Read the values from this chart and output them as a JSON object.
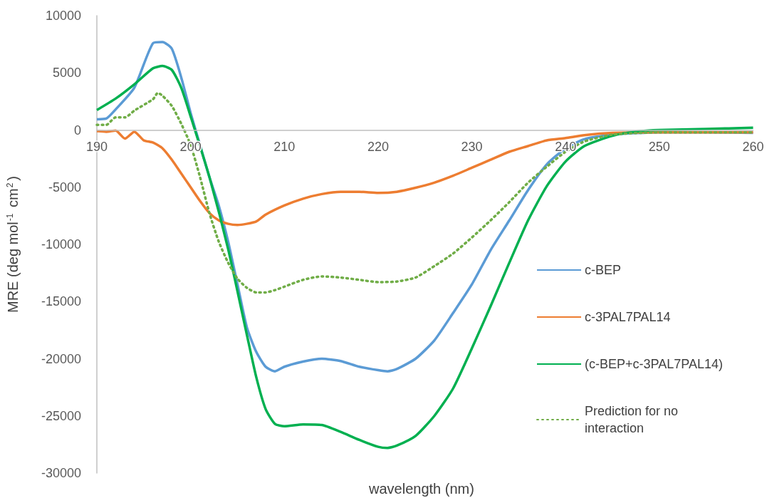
{
  "chart_data": {
    "type": "line",
    "xlabel": "wavelength (nm)",
    "ylabel": "MRE (deg mol$^{-1}$ cm$^{2}$)",
    "xlim": [
      190,
      260
    ],
    "xticks": [
      190,
      200,
      210,
      220,
      230,
      240,
      250,
      260
    ],
    "ylim": [
      -30000,
      10000
    ],
    "yticks": [
      -30000,
      -25000,
      -20000,
      -15000,
      -10000,
      -5000,
      0,
      5000,
      10000
    ],
    "grid": false,
    "legend": "right",
    "marker": "none",
    "series": [
      {
        "name": "c-BEP",
        "color": "#5b9bd5",
        "line_style": "solid",
        "x": [
          190,
          191,
          192,
          194,
          196,
          197,
          198,
          199,
          200,
          201,
          202,
          203,
          204,
          205,
          206,
          207,
          208,
          209,
          210,
          212,
          214,
          216,
          218,
          220,
          221,
          222,
          224,
          226,
          228,
          230,
          232,
          234,
          236,
          238,
          240,
          242,
          245,
          250,
          255,
          260
        ],
        "values": [
          940,
          1000,
          1800,
          3700,
          7600,
          7700,
          7100,
          4600,
          1500,
          -1300,
          -4100,
          -6600,
          -9750,
          -13500,
          -17250,
          -19400,
          -20700,
          -21100,
          -20700,
          -20250,
          -20000,
          -20200,
          -20700,
          -21000,
          -21100,
          -20900,
          -20000,
          -18400,
          -16000,
          -13500,
          -10500,
          -7900,
          -5250,
          -3000,
          -1600,
          -800,
          -400,
          -200,
          -200,
          -250
        ]
      },
      {
        "name": "c-3PAL7PAL14",
        "color": "#ed7d31",
        "line_style": "solid",
        "x": [
          190,
          191,
          192,
          193,
          194,
          195,
          196,
          197,
          198,
          199,
          200,
          201,
          202,
          203,
          204,
          205,
          206,
          207,
          208,
          210,
          212,
          214,
          216,
          218,
          220,
          222,
          224,
          226,
          228,
          230,
          232,
          234,
          236,
          238,
          240,
          242,
          245,
          250,
          260
        ],
        "values": [
          -100,
          -150,
          -50,
          -750,
          -150,
          -900,
          -1100,
          -1600,
          -2600,
          -3800,
          -5000,
          -6200,
          -7250,
          -7900,
          -8200,
          -8300,
          -8200,
          -8000,
          -7400,
          -6600,
          -6000,
          -5600,
          -5400,
          -5400,
          -5500,
          -5400,
          -5050,
          -4600,
          -4000,
          -3300,
          -2600,
          -1900,
          -1400,
          -900,
          -700,
          -450,
          -250,
          -200,
          -200
        ]
      },
      {
        "name": "(c-BEP+c-3PAL7PAL14)",
        "color": "#00b050",
        "line_style": "solid",
        "x": [
          190,
          192,
          194,
          196,
          197,
          198,
          199,
          200,
          202,
          204,
          206,
          207,
          208,
          209,
          210,
          212,
          214,
          216,
          218,
          220,
          221,
          222,
          224,
          226,
          228,
          230,
          232,
          234,
          236,
          238,
          240,
          242,
          245,
          248,
          250,
          255,
          260
        ],
        "values": [
          1750,
          2750,
          4000,
          5400,
          5600,
          5250,
          3700,
          1200,
          -4100,
          -10400,
          -17900,
          -21600,
          -24400,
          -25700,
          -25900,
          -25750,
          -25800,
          -26400,
          -27100,
          -27700,
          -27800,
          -27600,
          -26750,
          -25000,
          -22600,
          -19100,
          -15400,
          -11600,
          -7900,
          -4900,
          -2750,
          -1400,
          -500,
          -100,
          0,
          100,
          200
        ]
      },
      {
        "name": "Prediction for no interaction",
        "color": "#70ad47",
        "line_style": "dotted",
        "x": [
          190,
          191,
          192,
          193,
          194,
          196,
          196.5,
          197,
          198,
          199,
          200,
          201,
          202,
          203,
          204,
          205,
          206,
          207,
          208,
          209,
          210,
          212,
          214,
          216,
          218,
          220,
          222,
          224,
          226,
          228,
          230,
          232,
          234,
          236,
          238,
          240,
          242,
          245,
          250,
          260
        ],
        "values": [
          450,
          450,
          1100,
          1100,
          1700,
          2700,
          3250,
          3000,
          2100,
          550,
          -1300,
          -4100,
          -7250,
          -9750,
          -11600,
          -13000,
          -13800,
          -14200,
          -14200,
          -14000,
          -13700,
          -13100,
          -12800,
          -12900,
          -13100,
          -13300,
          -13250,
          -12900,
          -11900,
          -10800,
          -9400,
          -7900,
          -6300,
          -4600,
          -3200,
          -1900,
          -1000,
          -400,
          -200,
          -200
        ]
      }
    ]
  }
}
